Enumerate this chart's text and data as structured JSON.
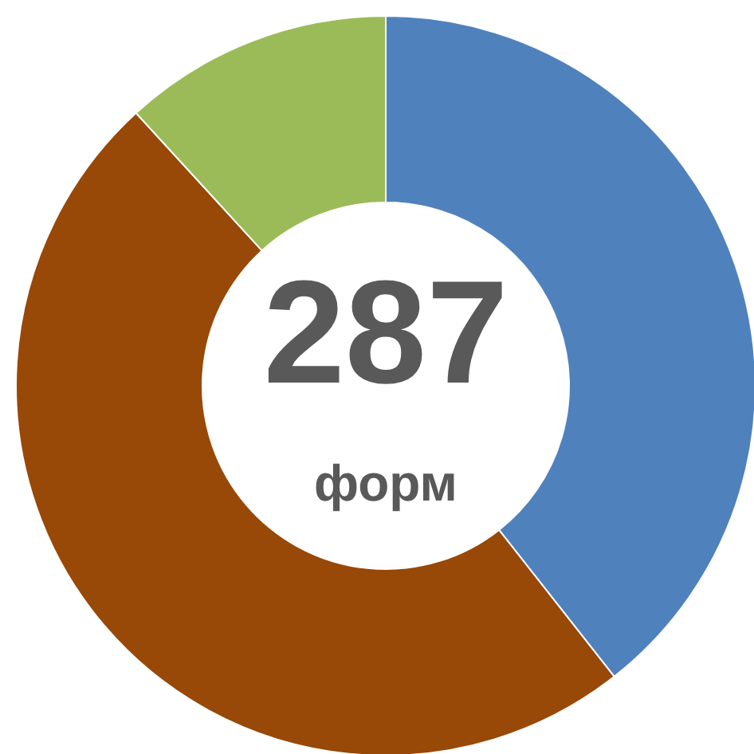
{
  "chart_data": {
    "type": "donut",
    "categories": [
      null,
      null,
      null
    ],
    "values": [
      39.4,
      48.8,
      11.8
    ],
    "colors": [
      "#4f81bd",
      "#984807",
      "#9bbb59"
    ],
    "annotations": [
      "287",
      "форм"
    ]
  }
}
